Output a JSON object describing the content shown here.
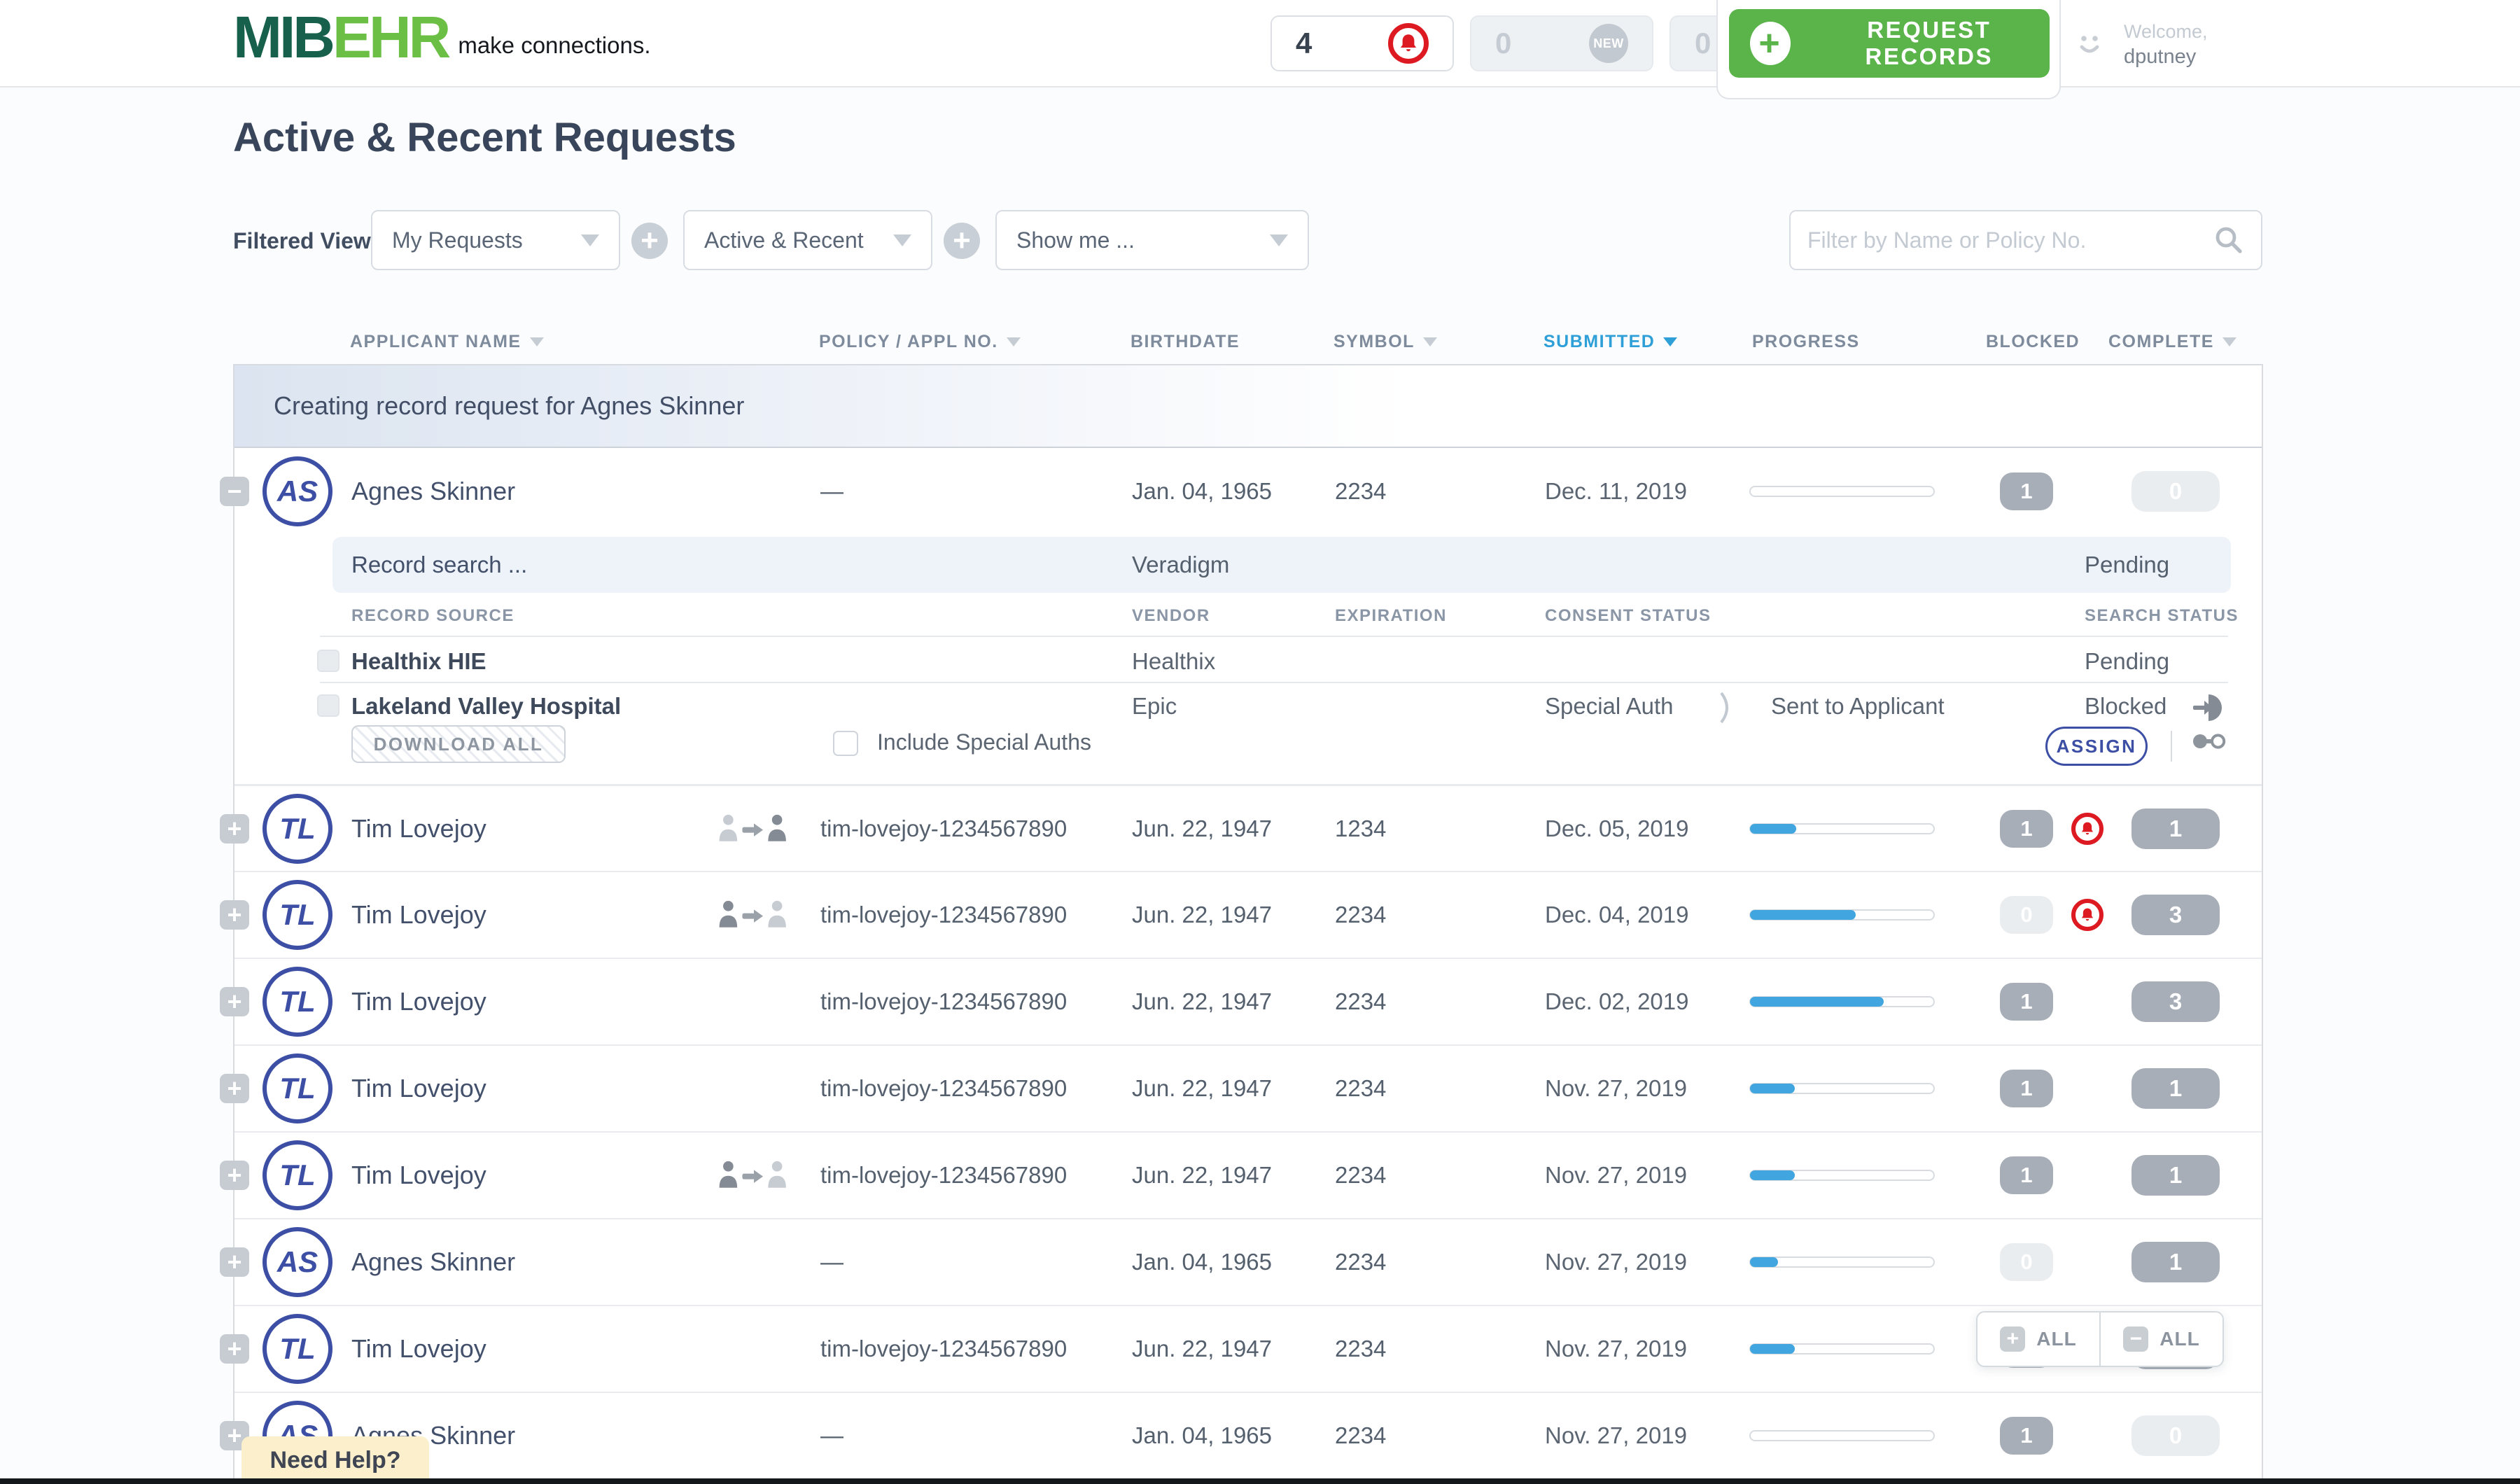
{
  "header": {
    "logo_mib": "MIB",
    "logo_ehr": "EHR",
    "tagline": "make connections.",
    "alerts_count": "4",
    "new_count": "0",
    "new_badge": "NEW",
    "downloads_count": "0",
    "request_records_label": "REQUEST RECORDS",
    "welcome_label": "Welcome,",
    "username": "dputney"
  },
  "page": {
    "title": "Active & Recent Requests"
  },
  "filters": {
    "label": "Filtered View",
    "view_value": "My Requests",
    "scope_value": "Active & Recent",
    "show_me_value": "Show me ...",
    "search_placeholder": "Filter by Name or Policy No."
  },
  "columns": {
    "applicant": "APPLICANT NAME",
    "policy": "POLICY / APPL NO.",
    "birthdate": "BIRTHDATE",
    "symbol": "SYMBOL",
    "submitted": "SUBMITTED",
    "progress": "PROGRESS",
    "blocked": "BLOCKED",
    "complete": "COMPLETE"
  },
  "banner": {
    "text": "Creating record request for Agnes Skinner"
  },
  "expanded": {
    "record_search_label": "Record search ...",
    "record_search_vendor": "Veradigm",
    "record_search_status": "Pending",
    "col_record_source": "RECORD SOURCE",
    "col_vendor": "VENDOR",
    "col_expiration": "EXPIRATION",
    "col_consent_status": "CONSENT STATUS",
    "col_search_status": "SEARCH STATUS",
    "sources": [
      {
        "name": "Healthix HIE",
        "vendor": "Healthix",
        "consent": "",
        "consent_note": "",
        "search_status": "Pending"
      },
      {
        "name": "Lakeland Valley Hospital",
        "vendor": "Epic",
        "consent": "Special Auth",
        "consent_note": "Sent to Applicant",
        "search_status": "Blocked"
      }
    ],
    "download_all_label": "DOWNLOAD ALL",
    "include_special_label": "Include Special Auths",
    "assign_label": "ASSIGN"
  },
  "rows": [
    {
      "initials": "AS",
      "name": "Agnes Skinner",
      "policy": "—",
      "birthdate": "Jan. 04, 1965",
      "symbol": "2234",
      "submitted": "Dec. 11, 2019",
      "progress": 0,
      "blocked": "1",
      "blocked_style": "dark",
      "complete": "0",
      "complete_style": "light",
      "bell": false,
      "transfer": "none",
      "expanded": true
    },
    {
      "initials": "TL",
      "name": "Tim Lovejoy",
      "policy": "tim-lovejoy-1234567890",
      "birthdate": "Jun. 22, 1947",
      "symbol": "1234",
      "submitted": "Dec. 05, 2019",
      "progress": 25,
      "blocked": "1",
      "blocked_style": "dark",
      "complete": "1",
      "complete_style": "dark",
      "bell": true,
      "transfer": "in",
      "expanded": false
    },
    {
      "initials": "TL",
      "name": "Tim Lovejoy",
      "policy": "tim-lovejoy-1234567890",
      "birthdate": "Jun. 22, 1947",
      "symbol": "2234",
      "submitted": "Dec. 04, 2019",
      "progress": 57,
      "blocked": "0",
      "blocked_style": "light",
      "complete": "3",
      "complete_style": "dark",
      "bell": true,
      "transfer": "out",
      "expanded": false
    },
    {
      "initials": "TL",
      "name": "Tim Lovejoy",
      "policy": "tim-lovejoy-1234567890",
      "birthdate": "Jun. 22, 1947",
      "symbol": "2234",
      "submitted": "Dec. 02, 2019",
      "progress": 72,
      "blocked": "1",
      "blocked_style": "dark",
      "complete": "3",
      "complete_style": "dark",
      "bell": false,
      "transfer": "none",
      "expanded": false
    },
    {
      "initials": "TL",
      "name": "Tim Lovejoy",
      "policy": "tim-lovejoy-1234567890",
      "birthdate": "Jun. 22, 1947",
      "symbol": "2234",
      "submitted": "Nov. 27, 2019",
      "progress": 24,
      "blocked": "1",
      "blocked_style": "dark",
      "complete": "1",
      "complete_style": "dark",
      "bell": false,
      "transfer": "none",
      "expanded": false
    },
    {
      "initials": "TL",
      "name": "Tim Lovejoy",
      "policy": "tim-lovejoy-1234567890",
      "birthdate": "Jun. 22, 1947",
      "symbol": "2234",
      "submitted": "Nov. 27, 2019",
      "progress": 24,
      "blocked": "1",
      "blocked_style": "dark",
      "complete": "1",
      "complete_style": "dark",
      "bell": false,
      "transfer": "out",
      "expanded": false
    },
    {
      "initials": "AS",
      "name": "Agnes Skinner",
      "policy": "—",
      "birthdate": "Jan. 04, 1965",
      "symbol": "2234",
      "submitted": "Nov. 27, 2019",
      "progress": 15,
      "blocked": "0",
      "blocked_style": "light",
      "complete": "1",
      "complete_style": "dark",
      "bell": false,
      "transfer": "none",
      "expanded": false
    },
    {
      "initials": "TL",
      "name": "Tim Lovejoy",
      "policy": "tim-lovejoy-1234567890",
      "birthdate": "Jun. 22, 1947",
      "symbol": "2234",
      "submitted": "Nov. 27, 2019",
      "progress": 24,
      "blocked": "1",
      "blocked_style": "dark",
      "complete": "1",
      "complete_style": "dark",
      "bell": false,
      "transfer": "none",
      "expanded": false
    },
    {
      "initials": "AS",
      "name": "Agnes Skinner",
      "policy": "—",
      "birthdate": "Jan. 04, 1965",
      "symbol": "2234",
      "submitted": "Nov. 27, 2019",
      "progress": 0,
      "blocked": "1",
      "blocked_style": "dark",
      "complete": "0",
      "complete_style": "light",
      "bell": false,
      "transfer": "none",
      "expanded": false
    }
  ],
  "overlay": {
    "expand_all_label": "ALL",
    "collapse_all_label": "ALL"
  },
  "help": {
    "label": "Need Help?"
  }
}
